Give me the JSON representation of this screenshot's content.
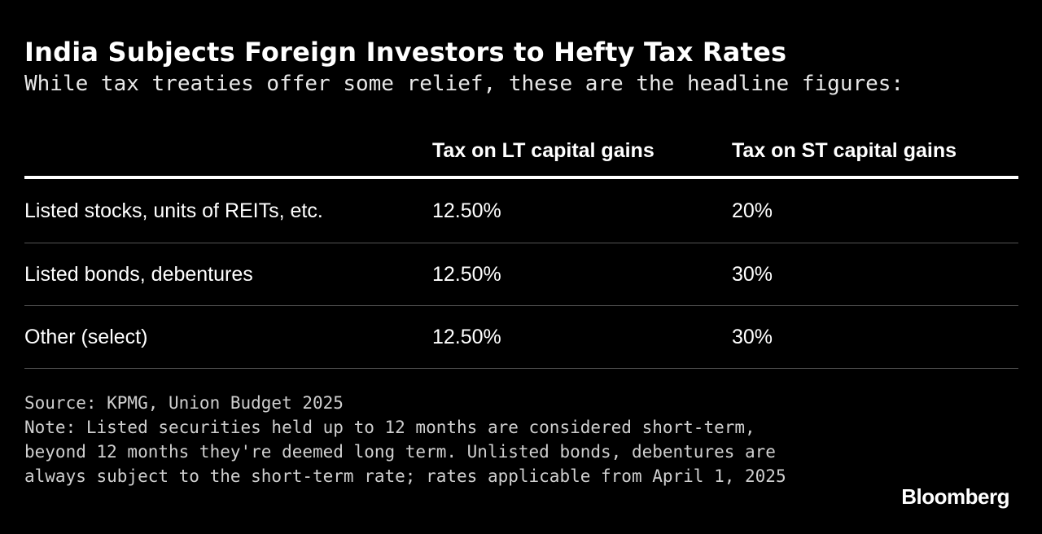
{
  "header": {
    "title": "India Subjects Foreign Investors to Hefty Tax Rates",
    "subtitle": "While tax treaties offer some relief, these are the headline figures:"
  },
  "chart_data": {
    "type": "table",
    "title": "India Subjects Foreign Investors to Hefty Tax Rates",
    "subtitle": "While tax treaties offer some relief, these are the headline figures:",
    "columns": [
      "",
      "Tax on LT capital gains",
      "Tax on ST capital gains"
    ],
    "rows": [
      [
        "Listed stocks, units of REITs, etc.",
        "12.50%",
        "20%"
      ],
      [
        "Listed bonds, debentures",
        "12.50%",
        "30%"
      ],
      [
        "Other (select)",
        "12.50%",
        "30%"
      ]
    ]
  },
  "footer": {
    "source": "Source: KPMG, Union Budget 2025",
    "note": "Note: Listed securities held up to 12 months are considered short-term, beyond 12 months they're deemed long term. Unlisted bonds, debentures are always subject to the short-term rate; rates applicable from April 1, 2025"
  },
  "brand": "Bloomberg",
  "colors": {
    "background": "#000000",
    "text": "#ffffff",
    "header_rule": "#ffffff",
    "row_rule": "#555555"
  }
}
